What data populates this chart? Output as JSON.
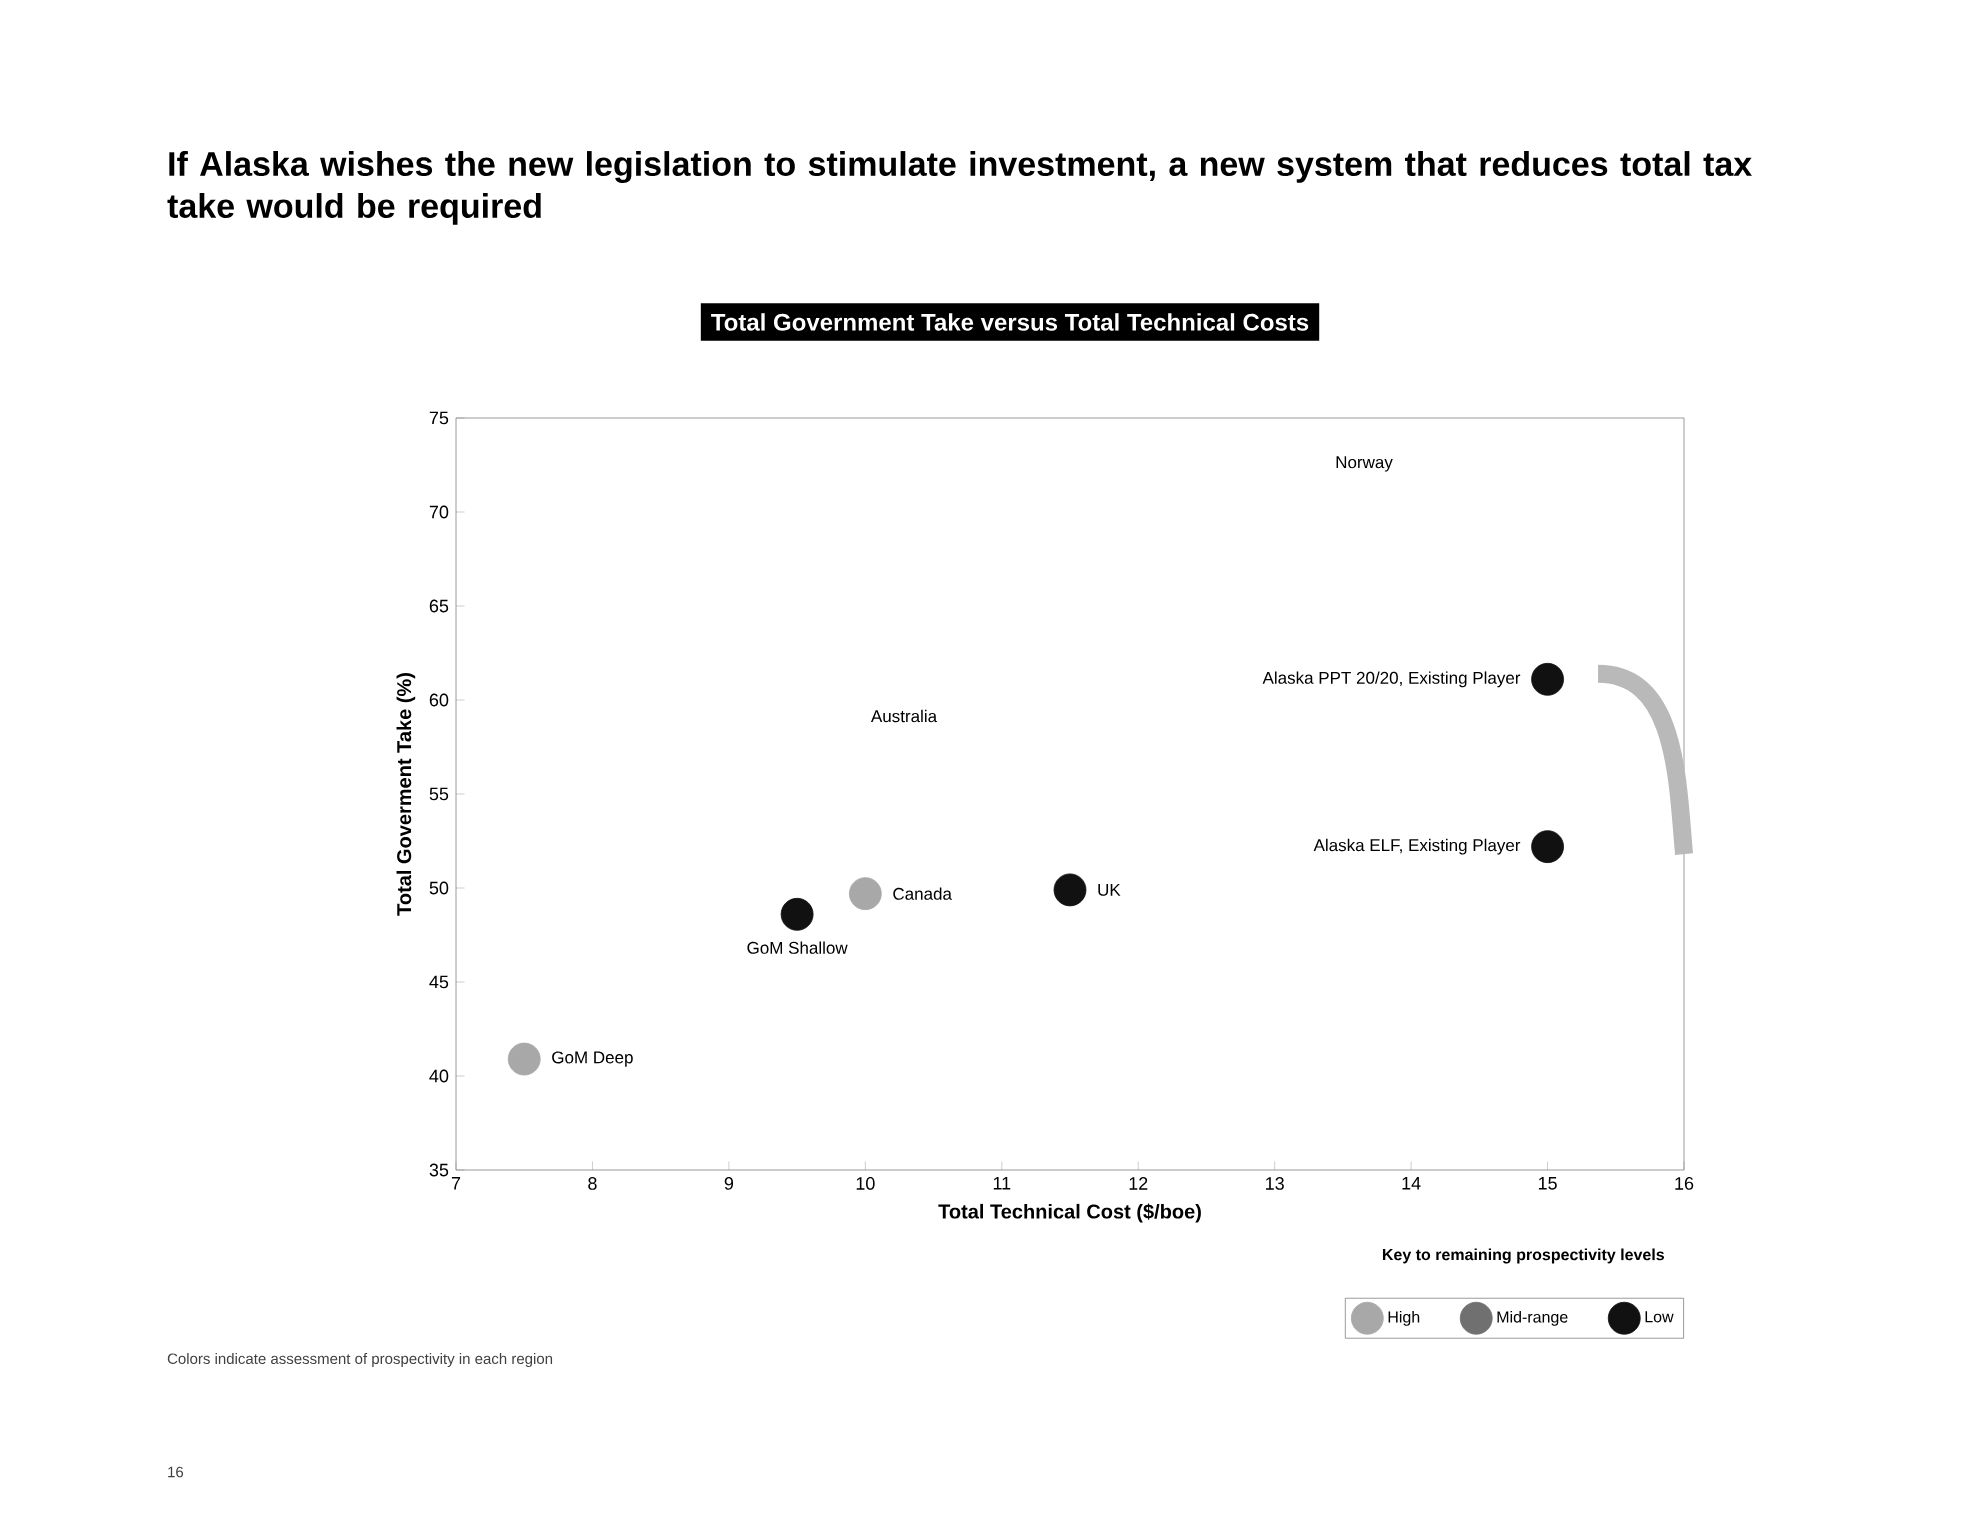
{
  "chart_data": {
    "type": "scatter",
    "title": "If Alaska wishes the new legislation to stimulate investment, a new system that reduces total tax take would be required",
    "subtitle": "Total Government Take versus Total Technical Costs",
    "xlabel": "Total Technical Cost ($/boe)",
    "ylabel": "Total Goverment Take (%)",
    "legend_title": "Key to remaining prospectivity levels",
    "xlim": [
      7,
      16
    ],
    "ylim": [
      35,
      75
    ],
    "xticks": [
      7,
      8,
      9,
      10,
      11,
      12,
      13,
      14,
      15,
      16
    ],
    "yticks": [
      35,
      40,
      45,
      50,
      55,
      60,
      65,
      70,
      75
    ],
    "grid": false,
    "legend": "bottom right",
    "series": [
      {
        "name": "High",
        "color": "#a8a8a8",
        "x": [
          7.5,
          10.0
        ],
        "values": [
          40.9,
          49.7
        ]
      },
      {
        "name": "Mid-range",
        "color": "#707070"
      },
      {
        "name": "Low",
        "color": "#111111",
        "x": [
          9.5,
          11.5,
          15,
          15
        ],
        "values": [
          48.6,
          49.9,
          61.1,
          52.2
        ]
      }
    ],
    "annotations": [
      {
        "text": "GoM Deep",
        "x": 7.5,
        "y": 40.9
      },
      {
        "text": "GoM Shallow",
        "x": 9.5,
        "y": 48.6
      },
      {
        "text": "Canada",
        "x": 10.0,
        "y": 49.7
      },
      {
        "text": "UK",
        "x": 11.5,
        "y": 49.9
      },
      {
        "text": "Alaska PPT 20/20, Existing Player",
        "x": 15,
        "y": 61.1
      },
      {
        "text": "Alaska ELF, Existing Player",
        "x": 15,
        "y": 52.2
      },
      "Australia",
      "Norway",
      "Colors indicate assessment of prospectivity in each region",
      "16"
    ]
  }
}
